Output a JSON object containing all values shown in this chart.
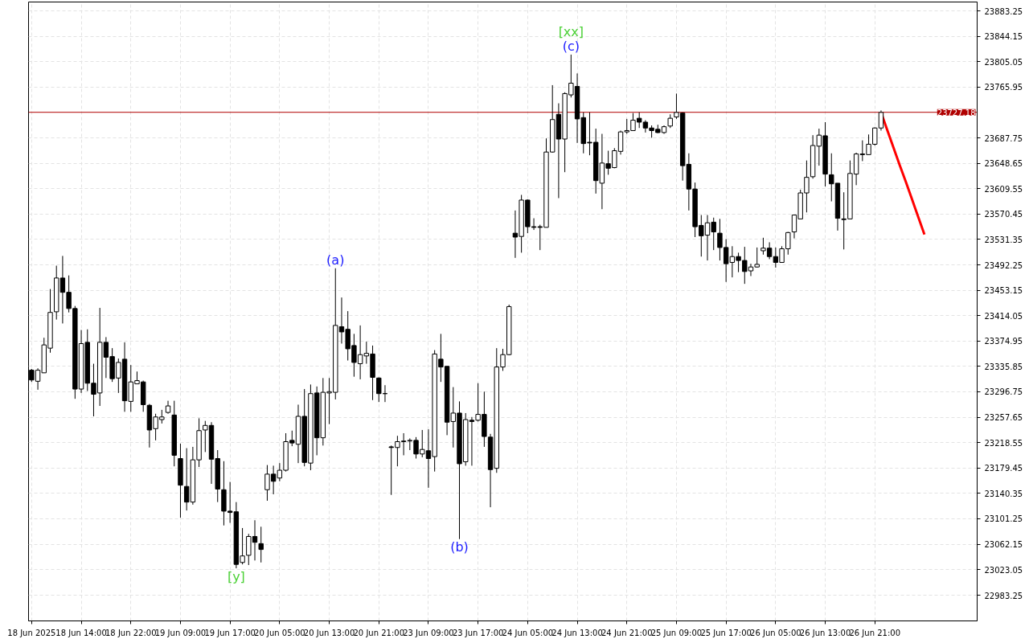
{
  "chart_data": {
    "type": "candlestick",
    "categories": [
      "18 Jun 2025",
      null,
      null,
      null,
      null,
      null,
      null,
      null,
      "18 Jun 14:00",
      null,
      null,
      null,
      null,
      null,
      null,
      null,
      "18 Jun 22:00",
      null,
      null,
      null,
      null,
      null,
      null,
      null,
      "19 Jun 09:00",
      null,
      null,
      null,
      null,
      null,
      null,
      null,
      "19 Jun 17:00",
      null,
      null,
      null,
      null,
      null,
      null,
      null,
      "20 Jun 05:00",
      null,
      null,
      null,
      null,
      null,
      null,
      null,
      "20 Jun 13:00",
      null,
      null,
      null,
      null,
      null,
      null,
      null,
      "20 Jun 21:00",
      null,
      null,
      null,
      null,
      null,
      null,
      null,
      "23 Jun 09:00",
      null,
      null,
      null,
      null,
      null,
      null,
      null,
      "23 Jun 17:00",
      null,
      null,
      null,
      null,
      null,
      null,
      null,
      "24 Jun 05:00",
      null,
      null,
      null,
      null,
      null,
      null,
      null,
      "24 Jun 13:00",
      null,
      null,
      null,
      null,
      null,
      null,
      null,
      "24 Jun 21:00",
      null,
      null,
      null,
      null,
      null,
      null,
      null,
      "25 Jun 09:00",
      null,
      null,
      null,
      null,
      null,
      null,
      null,
      "25 Jun 17:00",
      null,
      null,
      null,
      null,
      null,
      null,
      null,
      "26 Jun 05:00",
      null,
      null,
      null,
      null,
      null,
      null,
      null,
      "26 Jun 13:00",
      null,
      null,
      null,
      null,
      null,
      null,
      null,
      "26 Jun 21:00",
      null,
      null,
      null,
      null,
      null,
      null,
      null,
      null,
      null,
      null,
      null,
      null,
      null,
      null,
      null,
      null
    ],
    "ohlc": [
      [
        23330,
        23332,
        23312,
        23315
      ],
      [
        23313,
        23333,
        23300,
        23330
      ],
      [
        23326,
        23380,
        23326,
        23369
      ],
      [
        23364,
        23455,
        23357,
        23419
      ],
      [
        23420,
        23491,
        23408,
        23472
      ],
      [
        23472,
        23506,
        23402,
        23450
      ],
      [
        23450,
        23476,
        23419,
        23425
      ],
      [
        23425,
        23429,
        23286,
        23301
      ],
      [
        23301,
        23392,
        23295,
        23371
      ],
      [
        23373,
        23393,
        23298,
        23310
      ],
      [
        23310,
        23340,
        23259,
        23293
      ],
      [
        23295,
        23426,
        23275,
        23373
      ],
      [
        23373,
        23381,
        23318,
        23350
      ],
      [
        23351,
        23364,
        23312,
        23317
      ],
      [
        23318,
        23348,
        23295,
        23342
      ],
      [
        23347,
        23373,
        23266,
        23283
      ],
      [
        23282,
        23338,
        23266,
        23312
      ],
      [
        23309,
        23328,
        23309,
        23314
      ],
      [
        23312,
        23314,
        23266,
        23277
      ],
      [
        23276,
        23278,
        23211,
        23238
      ],
      [
        23240,
        23263,
        23222,
        23258
      ],
      [
        23254,
        23269,
        23248,
        23258
      ],
      [
        23265,
        23283,
        23263,
        23275
      ],
      [
        23261,
        23283,
        23182,
        23199
      ],
      [
        23194,
        23217,
        23103,
        23153
      ],
      [
        23151,
        23210,
        23114,
        23127
      ],
      [
        23127,
        23212,
        23123,
        23192
      ],
      [
        23192,
        23256,
        23181,
        23237
      ],
      [
        23238,
        23252,
        23204,
        23245
      ],
      [
        23245,
        23250,
        23155,
        23193
      ],
      [
        23194,
        23207,
        23127,
        23147
      ],
      [
        23146,
        23190,
        23091,
        23113
      ],
      [
        23113,
        23158,
        23095,
        23111
      ],
      [
        23112,
        23127,
        23025,
        23031
      ],
      [
        23034,
        23087,
        23031,
        23044
      ],
      [
        23045,
        23078,
        23030,
        23074
      ],
      [
        23074,
        23099,
        23037,
        23065
      ],
      [
        23063,
        23089,
        23034,
        23054
      ],
      [
        23146,
        23184,
        23129,
        23170
      ],
      [
        23170,
        23183,
        23139,
        23159
      ],
      [
        23164,
        23187,
        23159,
        23176
      ],
      [
        23176,
        23233,
        23174,
        23220
      ],
      [
        23222,
        23237,
        23213,
        23218
      ],
      [
        23216,
        23277,
        23187,
        23259
      ],
      [
        23259,
        23301,
        23182,
        23188
      ],
      [
        23187,
        23308,
        23176,
        23294
      ],
      [
        23295,
        23305,
        23199,
        23226
      ],
      [
        23226,
        23318,
        23214,
        23296
      ],
      [
        23295,
        23318,
        23247,
        23297
      ],
      [
        23296,
        23487,
        23285,
        23399
      ],
      [
        23397,
        23442,
        23371,
        23389
      ],
      [
        23393,
        23421,
        23345,
        23363
      ],
      [
        23368,
        23386,
        23320,
        23342
      ],
      [
        23340,
        23399,
        23316,
        23354
      ],
      [
        23352,
        23374,
        23340,
        23356
      ],
      [
        23355,
        23368,
        23284,
        23319
      ],
      [
        23318,
        23319,
        23281,
        23294
      ],
      [
        23294,
        23307,
        23281,
        23294
      ],
      [
        23212,
        23214,
        23138,
        23211
      ],
      [
        23211,
        23229,
        23182,
        23220
      ],
      [
        23220,
        23233,
        23199,
        23221
      ],
      [
        23221,
        23225,
        23207,
        23222
      ],
      [
        23222,
        23227,
        23194,
        23201
      ],
      [
        23201,
        23238,
        23196,
        23208
      ],
      [
        23206,
        23239,
        23149,
        23194
      ],
      [
        23197,
        23361,
        23174,
        23355
      ],
      [
        23347,
        23386,
        23312,
        23335
      ],
      [
        23336,
        23336,
        23230,
        23250
      ],
      [
        23251,
        23304,
        23211,
        23264
      ],
      [
        23264,
        23282,
        23070,
        23186
      ],
      [
        23189,
        23264,
        23183,
        23254
      ],
      [
        23253,
        23258,
        23183,
        23251
      ],
      [
        23253,
        23310,
        23251,
        23262
      ],
      [
        23262,
        23297,
        23212,
        23228
      ],
      [
        23227,
        23232,
        23119,
        23177
      ],
      [
        23179,
        23364,
        23172,
        23335
      ],
      [
        23335,
        23363,
        23329,
        23354
      ],
      [
        23354,
        23431,
        23353,
        23428
      ],
      [
        23541,
        23576,
        23503,
        23535
      ],
      [
        23536,
        23600,
        23511,
        23592
      ],
      [
        23592,
        23593,
        23541,
        23551
      ],
      [
        23551,
        23564,
        23546,
        23550
      ],
      [
        23551,
        23554,
        23515,
        23550
      ],
      [
        23550,
        23687,
        23550,
        23666
      ],
      [
        23666,
        23769,
        23665,
        23716
      ],
      [
        23724,
        23741,
        23595,
        23686
      ],
      [
        23686,
        23758,
        23635,
        23756
      ],
      [
        23754,
        23816,
        23750,
        23772
      ],
      [
        23767,
        23787,
        23680,
        23717
      ],
      [
        23719,
        23727,
        23664,
        23679
      ],
      [
        23681,
        23727,
        23661,
        23680
      ],
      [
        23681,
        23702,
        23602,
        23622
      ],
      [
        23618,
        23694,
        23578,
        23649
      ],
      [
        23648,
        23668,
        23631,
        23641
      ],
      [
        23642,
        23672,
        23641,
        23668
      ],
      [
        23667,
        23699,
        23662,
        23697
      ],
      [
        23697,
        23717,
        23694,
        23699
      ],
      [
        23699,
        23726,
        23699,
        23715
      ],
      [
        23718,
        23727,
        23703,
        23712
      ],
      [
        23712,
        23715,
        23696,
        23703
      ],
      [
        23703,
        23707,
        23688,
        23699
      ],
      [
        23701,
        23708,
        23695,
        23696
      ],
      [
        23696,
        23707,
        23694,
        23705
      ],
      [
        23706,
        23724,
        23703,
        23718
      ],
      [
        23720,
        23756,
        23717,
        23727
      ],
      [
        23726,
        23727,
        23622,
        23645
      ],
      [
        23647,
        23664,
        23576,
        23609
      ],
      [
        23609,
        23619,
        23535,
        23551
      ],
      [
        23553,
        23569,
        23505,
        23537
      ],
      [
        23538,
        23569,
        23499,
        23557
      ],
      [
        23558,
        23565,
        23515,
        23543
      ],
      [
        23541,
        23563,
        23499,
        23519
      ],
      [
        23519,
        23532,
        23466,
        23494
      ],
      [
        23496,
        23521,
        23473,
        23505
      ],
      [
        23505,
        23511,
        23481,
        23499
      ],
      [
        23499,
        23520,
        23463,
        23482
      ],
      [
        23483,
        23494,
        23475,
        23489
      ],
      [
        23489,
        23519,
        23488,
        23493
      ],
      [
        23514,
        23534,
        23508,
        23518
      ],
      [
        23518,
        23527,
        23501,
        23505
      ],
      [
        23505,
        23519,
        23488,
        23496
      ],
      [
        23496,
        23521,
        23496,
        23517
      ],
      [
        23517,
        23543,
        23508,
        23542
      ],
      [
        23543,
        23569,
        23533,
        23569
      ],
      [
        23563,
        23608,
        23563,
        23603
      ],
      [
        23603,
        23653,
        23573,
        23627
      ],
      [
        23628,
        23692,
        23625,
        23676
      ],
      [
        23675,
        23702,
        23645,
        23692
      ],
      [
        23691,
        23712,
        23613,
        23632
      ],
      [
        23631,
        23664,
        23590,
        23617
      ],
      [
        23618,
        23618,
        23545,
        23564
      ],
      [
        23563,
        23604,
        23516,
        23562
      ],
      [
        23563,
        23653,
        23563,
        23633
      ],
      [
        23632,
        23665,
        23615,
        23663
      ],
      [
        23663,
        23684,
        23652,
        23662
      ],
      [
        23662,
        23693,
        23662,
        23678
      ],
      [
        23678,
        23704,
        23676,
        23703
      ],
      [
        23703,
        23730,
        23699,
        23727
      ],
      null,
      null,
      null,
      null,
      null,
      null,
      null,
      null,
      null,
      null,
      null,
      null,
      null,
      null,
      null
    ],
    "color": "#000000",
    "series": [
      {
        "type": "line",
        "color": "#ff0000",
        "values": [
          null,
          null,
          null,
          null,
          null,
          null,
          null,
          null,
          null,
          null,
          null,
          null,
          null,
          null,
          null,
          null,
          null,
          null,
          null,
          null,
          null,
          null,
          null,
          null,
          null,
          null,
          null,
          null,
          null,
          null,
          null,
          null,
          null,
          null,
          null,
          null,
          null,
          null,
          null,
          null,
          null,
          null,
          null,
          null,
          null,
          null,
          null,
          null,
          null,
          null,
          null,
          null,
          null,
          null,
          null,
          null,
          null,
          null,
          null,
          null,
          null,
          null,
          null,
          null,
          null,
          null,
          null,
          null,
          null,
          null,
          null,
          null,
          null,
          null,
          null,
          null,
          null,
          null,
          null,
          null,
          null,
          null,
          null,
          null,
          null,
          null,
          null,
          null,
          null,
          null,
          null,
          null,
          null,
          null,
          null,
          null,
          null,
          null,
          null,
          null,
          null,
          null,
          null,
          null,
          null,
          null,
          null,
          null,
          null,
          null,
          null,
          null,
          null,
          null,
          null,
          null,
          null,
          null,
          null,
          null,
          null,
          null,
          null,
          null,
          null,
          null,
          null,
          null,
          null,
          null,
          null,
          null,
          null,
          null,
          null,
          null,
          null,
          23727,
          23700,
          23673,
          23646,
          23620,
          23593,
          23566,
          23539,
          null,
          null,
          null,
          null,
          null,
          null,
          null,
          null
        ]
      }
    ],
    "ylim": [
      22944,
      23897
    ],
    "yticks": [
      22983.25,
      23023.05,
      23062.15,
      23101.25,
      23140.35,
      23179.45,
      23218.55,
      23257.65,
      23296.75,
      23335.85,
      23374.95,
      23414.05,
      23453.15,
      23492.25,
      23531.35,
      23570.45,
      23609.55,
      23648.65,
      23687.75,
      23765.95,
      23805.05,
      23844.15,
      23883.25
    ],
    "grid": true,
    "ref_lines": [
      {
        "axis": "y",
        "value": 23727.18,
        "label": "23727.18",
        "color": "#b00000"
      }
    ],
    "annotations": [
      "[xx]",
      "(c)",
      "(a)",
      "(b)",
      "[y]"
    ]
  }
}
